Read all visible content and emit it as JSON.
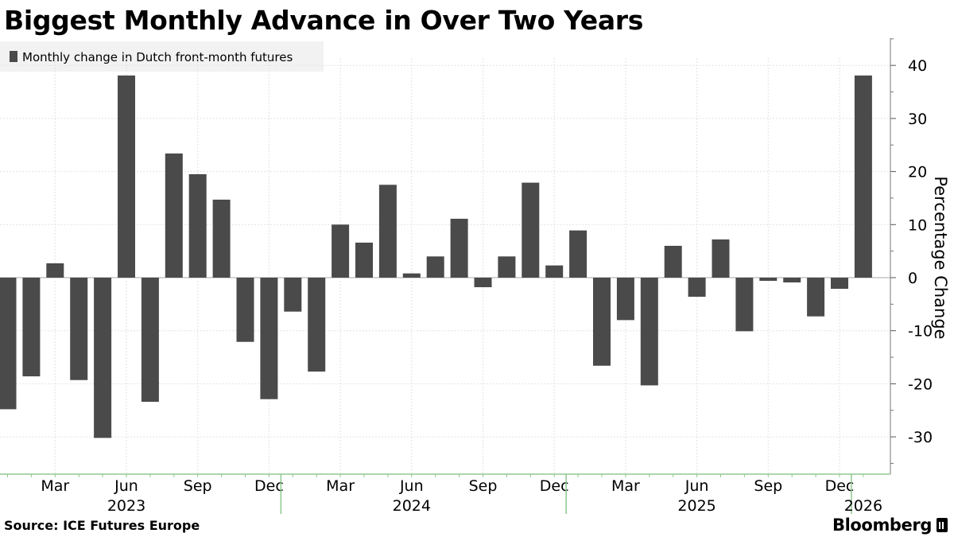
{
  "chart_data": {
    "type": "bar",
    "title": "Biggest Monthly Advance in Over Two Years",
    "ylabel": "Percentage Change",
    "ylim": [
      -37,
      45
    ],
    "yticks": [
      -30,
      -20,
      -10,
      0,
      10,
      20,
      30,
      40
    ],
    "grid": true,
    "legend_position": "top-left",
    "series": [
      {
        "name": "Monthly change in Dutch front-month futures",
        "color": "#4a4a4a",
        "values": [
          {
            "x": "2023-01",
            "y": -24.8
          },
          {
            "x": "2023-02",
            "y": -18.6
          },
          {
            "x": "2023-03",
            "y": 2.7
          },
          {
            "x": "2023-04",
            "y": -19.3
          },
          {
            "x": "2023-05",
            "y": -30.2
          },
          {
            "x": "2023-06",
            "y": 38.1
          },
          {
            "x": "2023-07",
            "y": -23.4
          },
          {
            "x": "2023-08",
            "y": 23.4
          },
          {
            "x": "2023-09",
            "y": 19.5
          },
          {
            "x": "2023-10",
            "y": 14.7
          },
          {
            "x": "2023-11",
            "y": -12.1
          },
          {
            "x": "2023-12",
            "y": -22.9
          },
          {
            "x": "2024-01",
            "y": -6.4
          },
          {
            "x": "2024-02",
            "y": -17.7
          },
          {
            "x": "2024-03",
            "y": 10.0
          },
          {
            "x": "2024-04",
            "y": 6.6
          },
          {
            "x": "2024-05",
            "y": 17.5
          },
          {
            "x": "2024-06",
            "y": 0.8
          },
          {
            "x": "2024-07",
            "y": 4.0
          },
          {
            "x": "2024-08",
            "y": 11.1
          },
          {
            "x": "2024-09",
            "y": -1.8
          },
          {
            "x": "2024-10",
            "y": 4.0
          },
          {
            "x": "2024-11",
            "y": 17.9
          },
          {
            "x": "2024-12",
            "y": 2.3
          },
          {
            "x": "2025-01",
            "y": 8.9
          },
          {
            "x": "2025-02",
            "y": -16.6
          },
          {
            "x": "2025-03",
            "y": -8.0
          },
          {
            "x": "2025-04",
            "y": -20.3
          },
          {
            "x": "2025-05",
            "y": 6.0
          },
          {
            "x": "2025-06",
            "y": -3.6
          },
          {
            "x": "2025-07",
            "y": 7.2
          },
          {
            "x": "2025-08",
            "y": -10.1
          },
          {
            "x": "2025-09",
            "y": -0.6
          },
          {
            "x": "2025-10",
            "y": -0.9
          },
          {
            "x": "2025-11",
            "y": -7.3
          },
          {
            "x": "2025-12",
            "y": -2.1
          },
          {
            "x": "2026-01",
            "y": 38.1
          }
        ]
      }
    ],
    "month_ticks": [
      {
        "month": "2023-03",
        "label": "Mar"
      },
      {
        "month": "2023-06",
        "label": "Jun"
      },
      {
        "month": "2023-09",
        "label": "Sep"
      },
      {
        "month": "2023-12",
        "label": "Dec"
      },
      {
        "month": "2024-03",
        "label": "Mar"
      },
      {
        "month": "2024-06",
        "label": "Jun"
      },
      {
        "month": "2024-09",
        "label": "Sep"
      },
      {
        "month": "2024-12",
        "label": "Dec"
      },
      {
        "month": "2025-03",
        "label": "Mar"
      },
      {
        "month": "2025-06",
        "label": "Jun"
      },
      {
        "month": "2025-09",
        "label": "Sep"
      },
      {
        "month": "2025-12",
        "label": "Dec"
      }
    ],
    "year_labels": [
      {
        "label": "2023",
        "center": "2023-06"
      },
      {
        "label": "2024",
        "center": "2024-06"
      },
      {
        "label": "2025",
        "center": "2025-06"
      },
      {
        "label": "2026",
        "center": "2026-01"
      }
    ]
  },
  "footer": {
    "source": "Source: ICE Futures Europe",
    "brand": "Bloomberg",
    "brand_icon": "bloomberg-terminal-icon"
  }
}
